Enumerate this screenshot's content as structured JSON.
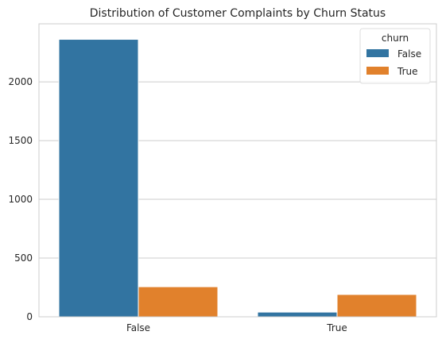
{
  "chart_data": {
    "type": "bar",
    "title": "Distribution of Customer Complaints by Churn Status",
    "xlabel": "",
    "ylabel": "",
    "categories": [
      "False",
      "True"
    ],
    "series": [
      {
        "name": "False",
        "values": [
          2362,
          40
        ],
        "color": "#3274a1"
      },
      {
        "name": "True",
        "values": [
          256,
          190
        ],
        "color": "#e1812c"
      }
    ],
    "ylim": [
      0,
      2494
    ],
    "yticks": [
      0,
      500,
      1000,
      1500,
      2000
    ],
    "grid": true,
    "legend": {
      "title": "churn",
      "placement": "top-right"
    }
  }
}
